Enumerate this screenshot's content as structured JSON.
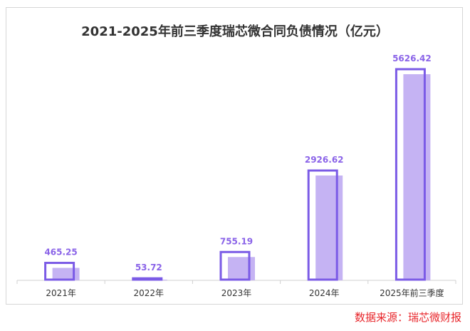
{
  "chart_data": {
    "type": "bar",
    "title": "2021-2025年前三季度瑞芯微合同负债情况（亿元）",
    "categories": [
      "2021年",
      "2022年",
      "2023年",
      "2024年",
      "2025年前三季度"
    ],
    "values": [
      465.25,
      53.72,
      755.19,
      2926.62,
      5626.42
    ],
    "data_labels": [
      "465.25",
      "53.72",
      "755.19",
      "2926.62",
      "5626.42"
    ],
    "xlabel": "",
    "ylabel": "",
    "ylim": [
      0,
      5626.42
    ],
    "grid": false,
    "legend": "none",
    "colors": {
      "fill": "#c5b3f3",
      "outline": "#7b5be6",
      "label": "#8a63e8",
      "axis": "#d0d0d0"
    }
  },
  "source": "数据来源：瑞芯微财报"
}
